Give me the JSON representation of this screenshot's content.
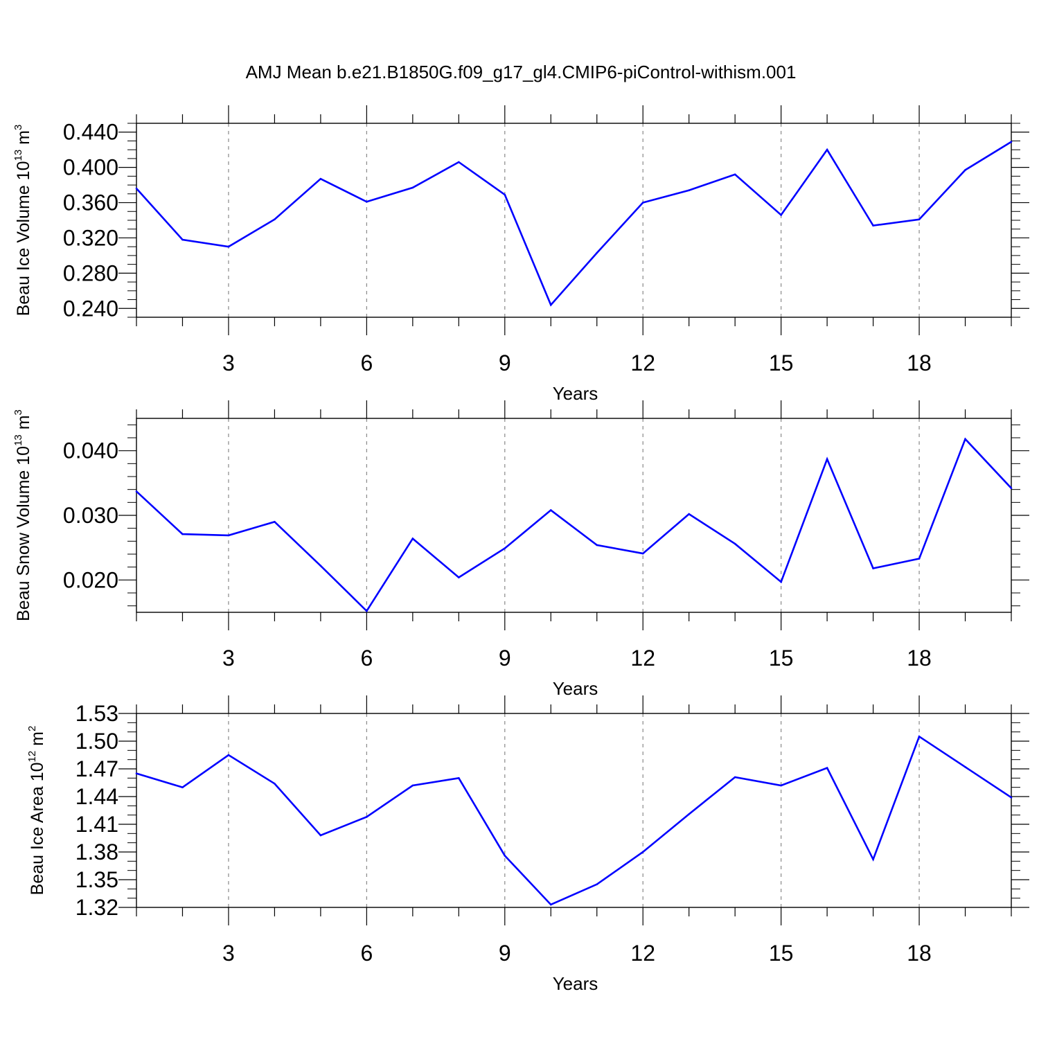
{
  "title": "AMJ Mean b.e21.B1850G.f09_g17_gl4.CMIP6-piControl-withism.001",
  "line_color": "#0000ff",
  "chart_data": [
    {
      "type": "line",
      "xlabel": "Years",
      "ylabel": {
        "text": "Beau Ice Volume 10",
        "exp": "13",
        "unit": " m",
        "unit_exp": "3"
      },
      "xlim": [
        1,
        20
      ],
      "ylim": [
        0.23,
        0.45
      ],
      "xticks": [
        3,
        6,
        9,
        12,
        15,
        18
      ],
      "xtick_labels": [
        "3",
        "6",
        "9",
        "12",
        "15",
        "18"
      ],
      "yticks": [
        0.24,
        0.28,
        0.32,
        0.36,
        0.4,
        0.44
      ],
      "ytick_labels": [
        "0.240",
        "0.280",
        "0.320",
        "0.360",
        "0.400",
        "0.440"
      ],
      "yminor_step": 0.01,
      "grid": "x-dashed",
      "x": [
        1,
        2,
        3,
        4,
        5,
        6,
        7,
        8,
        9,
        10,
        11,
        12,
        13,
        14,
        15,
        16,
        17,
        18,
        19,
        20
      ],
      "values": [
        0.376,
        0.318,
        0.31,
        0.341,
        0.387,
        0.361,
        0.377,
        0.406,
        0.369,
        0.244,
        0.303,
        0.36,
        0.374,
        0.392,
        0.346,
        0.42,
        0.334,
        0.341,
        0.397,
        0.429
      ]
    },
    {
      "type": "line",
      "xlabel": "Years",
      "ylabel": {
        "text": "Beau Snow Volume 10",
        "exp": "13",
        "unit": " m",
        "unit_exp": "3"
      },
      "xlim": [
        1,
        20
      ],
      "ylim": [
        0.015,
        0.045
      ],
      "xticks": [
        3,
        6,
        9,
        12,
        15,
        18
      ],
      "xtick_labels": [
        "3",
        "6",
        "9",
        "12",
        "15",
        "18"
      ],
      "yticks": [
        0.02,
        0.03,
        0.04
      ],
      "ytick_labels": [
        "0.020",
        "0.030",
        "0.040"
      ],
      "yminor_step": 0.002,
      "grid": "x-dashed",
      "x": [
        1,
        2,
        3,
        4,
        5,
        6,
        7,
        8,
        9,
        10,
        11,
        12,
        13,
        14,
        15,
        16,
        17,
        18,
        19,
        20
      ],
      "values": [
        0.0337,
        0.0271,
        0.0269,
        0.029,
        0.0222,
        0.0152,
        0.0264,
        0.0204,
        0.0249,
        0.0308,
        0.0254,
        0.0241,
        0.0302,
        0.0256,
        0.0197,
        0.0387,
        0.0218,
        0.0233,
        0.0418,
        0.0342
      ]
    },
    {
      "type": "line",
      "xlabel": "Years",
      "ylabel": {
        "text": "Beau Ice Area 10",
        "exp": "12",
        "unit": " m",
        "unit_exp": "2"
      },
      "xlim": [
        1,
        20
      ],
      "ylim": [
        1.32,
        1.53
      ],
      "xticks": [
        3,
        6,
        9,
        12,
        15,
        18
      ],
      "xtick_labels": [
        "3",
        "6",
        "9",
        "12",
        "15",
        "18"
      ],
      "yticks": [
        1.32,
        1.35,
        1.38,
        1.41,
        1.44,
        1.47,
        1.5,
        1.53
      ],
      "ytick_labels": [
        "1.32",
        "1.35",
        "1.38",
        "1.41",
        "1.44",
        "1.47",
        "1.50",
        "1.53"
      ],
      "yminor_step": 0.01,
      "grid": "x-dashed",
      "x": [
        1,
        2,
        3,
        4,
        5,
        6,
        7,
        8,
        9,
        10,
        11,
        12,
        13,
        14,
        15,
        16,
        17,
        18,
        19,
        20
      ],
      "values": [
        1.465,
        1.45,
        1.485,
        1.454,
        1.398,
        1.418,
        1.452,
        1.46,
        1.376,
        1.323,
        1.345,
        1.38,
        1.421,
        1.461,
        1.452,
        1.471,
        1.372,
        1.505,
        1.472,
        1.439
      ]
    }
  ]
}
